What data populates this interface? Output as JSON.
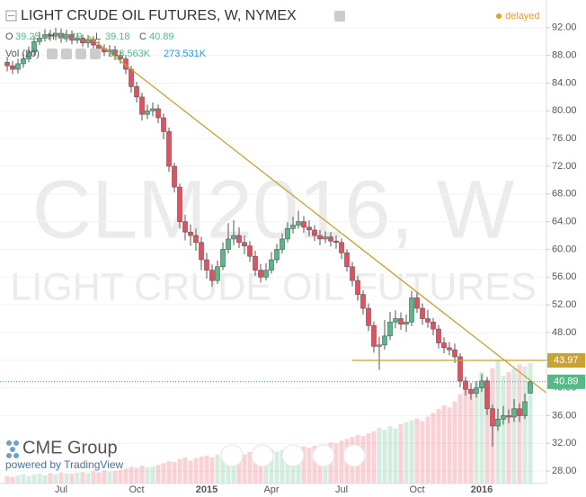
{
  "chart_data": {
    "type": "candlestick",
    "title": "LIGHT CRUDE OIL FUTURES, W, NYMEX",
    "status": "delayed",
    "watermark": "CLM2016, W",
    "watermark_subtitle": "LIGHT CRUDE OIL FUTURES",
    "ohlc_labels": [
      "O",
      "H",
      "L",
      "C"
    ],
    "volume_title": "Vol (20)",
    "volume_label": "323.563K",
    "volume_ma_label": "273.531K",
    "brand": "CME Group",
    "powered_by": "powered by TradingView",
    "up_color": "#53b987",
    "down_color": "#eb4d5c",
    "categories": [
      null,
      null,
      null,
      null,
      null,
      null,
      null,
      null,
      null,
      null,
      "Jul",
      null,
      null,
      null,
      null,
      null,
      null,
      null,
      null,
      null,
      null,
      null,
      null,
      null,
      "Oct",
      null,
      null,
      null,
      null,
      null,
      null,
      null,
      null,
      null,
      null,
      null,
      null,
      "2015",
      null,
      null,
      null,
      null,
      null,
      null,
      null,
      null,
      null,
      null,
      null,
      "Apr",
      null,
      null,
      null,
      null,
      null,
      null,
      null,
      null,
      null,
      null,
      null,
      null,
      "Jul",
      null,
      null,
      null,
      null,
      null,
      null,
      null,
      null,
      null,
      null,
      null,
      null,
      null,
      "Oct",
      null,
      null,
      null,
      null,
      null,
      null,
      null,
      null,
      null,
      null,
      null,
      "2016",
      null,
      null,
      null,
      null,
      null,
      null,
      null,
      null,
      null
    ],
    "open": [
      87.0,
      86.5,
      86.0,
      86.8,
      87.5,
      88.5,
      90.0,
      90.5,
      91.0,
      90.8,
      91.2,
      90.5,
      91.0,
      90.2,
      90.5,
      89.8,
      90.3,
      89.5,
      89.0,
      88.5,
      88.8,
      88.0,
      87.5,
      86.0,
      83.5,
      82.0,
      79.5,
      80.0,
      80.3,
      79.0,
      77.0,
      72.0,
      69.0,
      64.0,
      62.5,
      62.0,
      61.0,
      58.5,
      57.0,
      55.5,
      57.5,
      60.0,
      61.5,
      62.0,
      61.0,
      60.5,
      59.0,
      57.0,
      56.0,
      57.0,
      58.5,
      60.0,
      61.5,
      63.0,
      63.5,
      64.0,
      63.2,
      62.8,
      62.0,
      61.5,
      61.8,
      61.2,
      61.0,
      59.5,
      57.5,
      55.5,
      53.5,
      51.5,
      49.0,
      46.0,
      46.2,
      47.5,
      49.5,
      50.0,
      49.2,
      49.5,
      53.0,
      51.5,
      50.0,
      49.5,
      48.5,
      46.5,
      45.8,
      45.5,
      44.5,
      41.0,
      39.8,
      39.2,
      40.0,
      41.0,
      37.0,
      34.5,
      35.5,
      36.0,
      35.8,
      37.0,
      36.0,
      39.25
    ],
    "high": [
      87.8,
      87.2,
      87.5,
      88.3,
      89.3,
      90.8,
      91.4,
      91.8,
      91.7,
      92.0,
      91.9,
      91.7,
      91.6,
      91.2,
      91.0,
      90.9,
      90.8,
      90.1,
      89.6,
      89.5,
      89.4,
      88.6,
      88.1,
      86.5,
      84.2,
      82.6,
      80.9,
      81.2,
      80.9,
      79.6,
      77.6,
      72.5,
      69.5,
      65.0,
      63.6,
      63.0,
      61.8,
      59.5,
      57.8,
      58.4,
      61.0,
      63.8,
      64.2,
      63.2,
      62.0,
      61.2,
      59.8,
      57.9,
      58.0,
      59.6,
      60.8,
      62.3,
      63.9,
      64.7,
      65.6,
      64.8,
      64.2,
      63.5,
      62.8,
      62.6,
      62.5,
      62.0,
      61.6,
      60.0,
      58.2,
      56.2,
      54.1,
      52.2,
      49.6,
      47.4,
      49.8,
      51.0,
      51.2,
      50.9,
      50.6,
      54.0,
      53.8,
      52.2,
      51.3,
      50.1,
      49.1,
      47.3,
      46.6,
      46.4,
      45.0,
      41.6,
      40.7,
      41.0,
      42.0,
      41.6,
      37.6,
      37.0,
      37.4,
      36.9,
      38.4,
      37.8,
      39.2,
      41.19
    ],
    "low": [
      85.7,
      85.3,
      85.4,
      86.2,
      87.0,
      88.0,
      89.5,
      90.0,
      90.1,
      90.2,
      89.8,
      89.9,
      89.6,
      89.7,
      89.2,
      89.1,
      88.9,
      88.4,
      87.9,
      87.8,
      87.3,
      86.8,
      85.3,
      82.6,
      81.2,
      78.6,
      78.8,
      79.2,
      78.2,
      75.9,
      71.2,
      68.2,
      63.0,
      61.3,
      60.5,
      59.8,
      57.0,
      55.8,
      54.6,
      55.0,
      57.0,
      59.4,
      60.6,
      60.2,
      59.3,
      58.2,
      56.2,
      55.2,
      55.5,
      56.5,
      58.0,
      59.4,
      61.0,
      62.3,
      63.0,
      62.4,
      61.9,
      61.2,
      60.6,
      60.9,
      60.4,
      60.1,
      58.6,
      56.8,
      54.7,
      52.6,
      50.6,
      48.2,
      45.1,
      42.6,
      45.5,
      46.9,
      48.6,
      48.4,
      48.1,
      48.9,
      50.8,
      49.1,
      48.7,
      47.6,
      45.7,
      45.0,
      44.7,
      43.6,
      40.1,
      38.9,
      38.3,
      38.6,
      39.4,
      36.1,
      31.5,
      33.8,
      34.7,
      34.9,
      35.1,
      35.1,
      35.5,
      39.18
    ],
    "close": [
      86.5,
      86.0,
      86.8,
      87.5,
      88.5,
      90.0,
      90.5,
      91.0,
      90.8,
      91.2,
      90.5,
      91.0,
      90.2,
      90.5,
      89.8,
      90.3,
      89.5,
      89.0,
      88.5,
      88.8,
      88.0,
      87.5,
      86.0,
      83.5,
      82.0,
      79.5,
      80.0,
      80.3,
      79.0,
      77.0,
      72.0,
      69.0,
      64.0,
      62.5,
      62.0,
      61.0,
      58.5,
      57.0,
      55.5,
      57.5,
      60.0,
      61.5,
      62.0,
      61.0,
      60.5,
      59.0,
      57.0,
      56.0,
      57.0,
      58.5,
      60.0,
      61.5,
      63.0,
      63.5,
      64.0,
      63.2,
      62.8,
      62.0,
      61.5,
      61.8,
      61.2,
      61.0,
      59.5,
      57.5,
      55.5,
      53.5,
      51.5,
      49.0,
      46.0,
      46.2,
      47.5,
      49.5,
      50.0,
      49.2,
      49.5,
      53.0,
      51.5,
      50.0,
      49.5,
      48.5,
      46.5,
      45.8,
      45.5,
      44.5,
      41.0,
      39.8,
      39.2,
      40.0,
      41.0,
      37.0,
      34.5,
      35.5,
      36.0,
      35.8,
      37.0,
      36.0,
      38.0,
      40.89
    ],
    "volume": [
      20,
      18,
      22,
      25,
      20,
      24,
      26,
      22,
      28,
      25,
      30,
      27,
      26,
      29,
      31,
      28,
      33,
      30,
      35,
      32,
      34,
      36,
      40,
      45,
      42,
      48,
      44,
      46,
      50,
      55,
      60,
      58,
      66,
      70,
      62,
      68,
      72,
      75,
      70,
      78,
      80,
      76,
      82,
      74,
      78,
      85,
      90,
      84,
      88,
      92,
      86,
      90,
      95,
      88,
      94,
      100,
      96,
      102,
      98,
      105,
      110,
      108,
      115,
      120,
      125,
      130,
      128,
      135,
      140,
      150,
      145,
      155,
      148,
      160,
      165,
      170,
      175,
      168,
      180,
      190,
      200,
      210,
      205,
      220,
      240,
      260,
      250,
      270,
      300,
      280,
      310,
      330,
      290,
      300,
      310,
      320,
      315,
      323.563
    ],
    "volume_ylim": [
      0,
      1300
    ],
    "trendline": {
      "x": [
        15,
        100
      ],
      "y": [
        90.83,
        39.27
      ],
      "color": "#c8a330"
    },
    "hline": {
      "value": 43.97,
      "start": 64,
      "color": "#c8a330"
    },
    "ylim": [
      26.2,
      96.0
    ],
    "yticks": [
      {
        "value": 28,
        "label": "28.00"
      },
      {
        "value": 32,
        "label": "32.00"
      },
      {
        "value": 36,
        "label": "36.00"
      },
      {
        "value": 40,
        "label": "40.00"
      },
      {
        "value": 44,
        "label": "44.00"
      },
      {
        "value": 48,
        "label": "48.00"
      },
      {
        "value": 52,
        "label": "52.00"
      },
      {
        "value": 56,
        "label": "56.00"
      },
      {
        "value": 60,
        "label": "60.00"
      },
      {
        "value": 64,
        "label": "64.00"
      },
      {
        "value": 68,
        "label": "68.00"
      },
      {
        "value": 72,
        "label": "72.00"
      },
      {
        "value": 76,
        "label": "76.00"
      },
      {
        "value": 80,
        "label": "80.00"
      },
      {
        "value": 84,
        "label": "84.00"
      },
      {
        "value": 88,
        "label": "88.00"
      },
      {
        "value": 92,
        "label": "92.00"
      }
    ],
    "grid": true
  }
}
